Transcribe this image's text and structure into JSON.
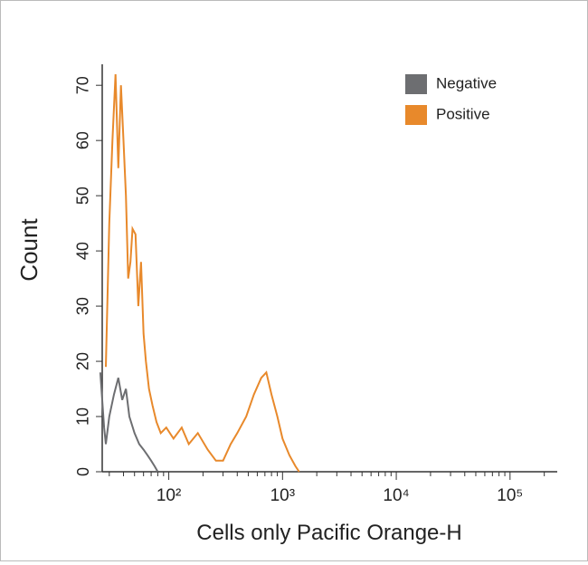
{
  "chart_data": {
    "type": "line",
    "x_label": "Cells only Pacific Orange-H",
    "y_label": "Count",
    "xscale": "log",
    "xlim": [
      26,
      260000
    ],
    "ylim": [
      0,
      72
    ],
    "xticks": [
      {
        "value": 100,
        "label": "10²"
      },
      {
        "value": 1000,
        "label": "10³"
      },
      {
        "value": 10000,
        "label": "10⁴"
      },
      {
        "value": 100000,
        "label": "10⁵"
      }
    ],
    "xminorticks": [
      30,
      40,
      50,
      60,
      70,
      80,
      90,
      200,
      300,
      400,
      500,
      600,
      700,
      800,
      900,
      2000,
      3000,
      4000,
      5000,
      6000,
      7000,
      8000,
      9000,
      20000,
      30000,
      40000,
      50000,
      60000,
      70000,
      80000,
      90000,
      200000
    ],
    "yticks": [
      0,
      10,
      20,
      30,
      40,
      50,
      60,
      70
    ],
    "legend": "top-right",
    "series": [
      {
        "name": "Negative",
        "color": "#6d6e71",
        "x": [
          25,
          27,
          28,
          30,
          33,
          36,
          39,
          42,
          45,
          50,
          55,
          60,
          65,
          70,
          75,
          80
        ],
        "values": [
          18,
          8,
          5,
          10,
          14,
          17,
          13,
          15,
          10,
          7,
          5,
          4,
          3,
          2,
          1,
          0
        ]
      },
      {
        "name": "Positive",
        "color": "#e8892b",
        "x": [
          28,
          30,
          32,
          34,
          36,
          38,
          40,
          42,
          44,
          46,
          48,
          51,
          54,
          57,
          60,
          63,
          67,
          72,
          78,
          85,
          95,
          110,
          130,
          150,
          180,
          220,
          260,
          300,
          350,
          400,
          480,
          560,
          650,
          720,
          800,
          900,
          1000,
          1150,
          1300,
          1400
        ],
        "values": [
          19,
          45,
          60,
          72,
          55,
          70,
          60,
          50,
          35,
          38,
          44,
          43,
          30,
          38,
          25,
          20,
          15,
          12,
          9,
          7,
          8,
          6,
          8,
          5,
          7,
          4,
          2,
          2,
          5,
          7,
          10,
          14,
          17,
          18,
          14,
          10,
          6,
          3,
          1,
          0
        ]
      }
    ]
  }
}
